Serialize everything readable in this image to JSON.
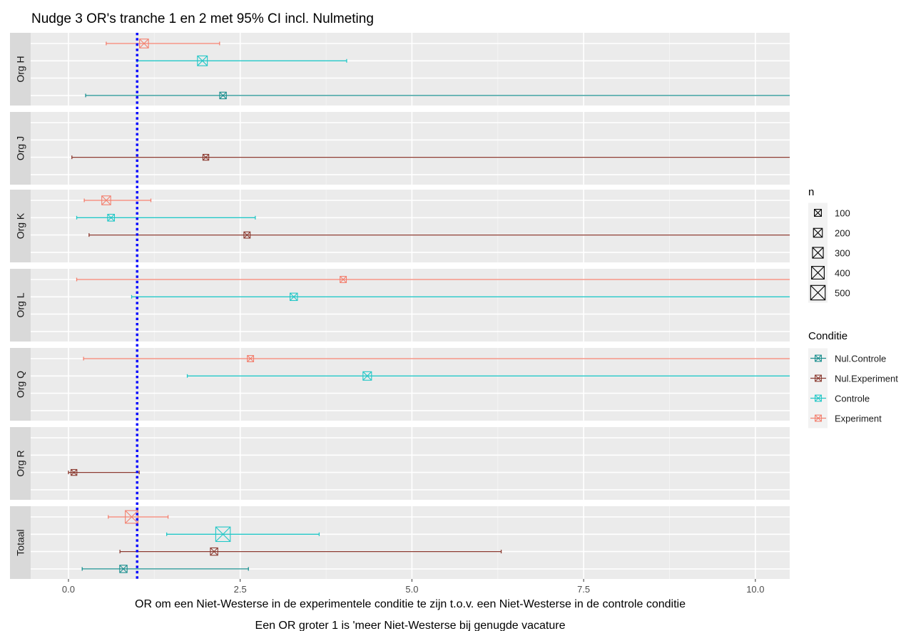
{
  "chart_data": {
    "type": "forest",
    "title": "Nudge 3 OR's tranche 1 en 2 met 95% CI incl. Nulmeting",
    "xlabel": "OR om een Niet-Westerse in de experimentele conditie te zijn t.o.v. een Niet-Westerse in de controle conditie",
    "caption": "Een OR groter 1 is 'meer Niet-Westerse bij genugde vacature",
    "xlim": [
      -0.55,
      10.5
    ],
    "xticks": [
      0.0,
      2.5,
      5.0,
      7.5,
      10.0
    ],
    "xtick_labels": [
      "0.0",
      "2.5",
      "5.0",
      "7.5",
      "10.0"
    ],
    "reference_line": {
      "x": 1,
      "color": "#0000ff",
      "style": "dotted"
    },
    "facet_rows": [
      "Org H",
      "Org J",
      "Org K",
      "Org L",
      "Org Q",
      "Org R",
      "Totaal"
    ],
    "conditions": [
      "Nul.Controle",
      "Nul.Experiment",
      "Controle",
      "Experiment"
    ],
    "colors": {
      "Nul.Controle": "#1a8f8f",
      "Nul.Experiment": "#8b3a30",
      "Controle": "#22c7c7",
      "Experiment": "#f37f6e"
    },
    "size_legend": {
      "title": "n",
      "values": [
        100,
        200,
        300,
        400,
        500
      ]
    },
    "color_legend_title": "Conditie",
    "series": [
      {
        "facet": "Org H",
        "condition": "Experiment",
        "or": 1.1,
        "lo": 0.55,
        "hi": 2.2,
        "n": 200
      },
      {
        "facet": "Org H",
        "condition": "Controle",
        "or": 1.95,
        "lo": 1.0,
        "hi": 4.05,
        "n": 250
      },
      {
        "facet": "Org H",
        "condition": "Nul.Controle",
        "or": 2.25,
        "lo": 0.25,
        "hi": 10.5,
        "n": 80
      },
      {
        "facet": "Org J",
        "condition": "Nul.Experiment",
        "or": 2.0,
        "lo": 0.05,
        "hi": 10.5,
        "n": 40
      },
      {
        "facet": "Org K",
        "condition": "Experiment",
        "or": 0.55,
        "lo": 0.23,
        "hi": 1.2,
        "n": 200
      },
      {
        "facet": "Org K",
        "condition": "Controle",
        "or": 0.62,
        "lo": 0.12,
        "hi": 2.72,
        "n": 90
      },
      {
        "facet": "Org K",
        "condition": "Nul.Experiment",
        "or": 2.6,
        "lo": 0.3,
        "hi": 10.5,
        "n": 60
      },
      {
        "facet": "Org L",
        "condition": "Experiment",
        "or": 4.0,
        "lo": 0.12,
        "hi": 10.5,
        "n": 60
      },
      {
        "facet": "Org L",
        "condition": "Controle",
        "or": 3.28,
        "lo": 0.92,
        "hi": 10.5,
        "n": 120
      },
      {
        "facet": "Org Q",
        "condition": "Experiment",
        "or": 2.65,
        "lo": 0.22,
        "hi": 10.5,
        "n": 60
      },
      {
        "facet": "Org Q",
        "condition": "Controle",
        "or": 4.35,
        "lo": 1.73,
        "hi": 10.5,
        "n": 180
      },
      {
        "facet": "Org R",
        "condition": "Nul.Experiment",
        "or": 0.08,
        "lo": 0.0,
        "hi": 1.03,
        "n": 40
      },
      {
        "facet": "Totaal",
        "condition": "Experiment",
        "or": 0.92,
        "lo": 0.58,
        "hi": 1.45,
        "n": 400
      },
      {
        "facet": "Totaal",
        "condition": "Controle",
        "or": 2.25,
        "lo": 1.43,
        "hi": 3.65,
        "n": 500
      },
      {
        "facet": "Totaal",
        "condition": "Nul.Experiment",
        "or": 2.12,
        "lo": 0.75,
        "hi": 6.3,
        "n": 120
      },
      {
        "facet": "Totaal",
        "condition": "Nul.Controle",
        "or": 0.8,
        "lo": 0.2,
        "hi": 2.62,
        "n": 120
      }
    ]
  }
}
